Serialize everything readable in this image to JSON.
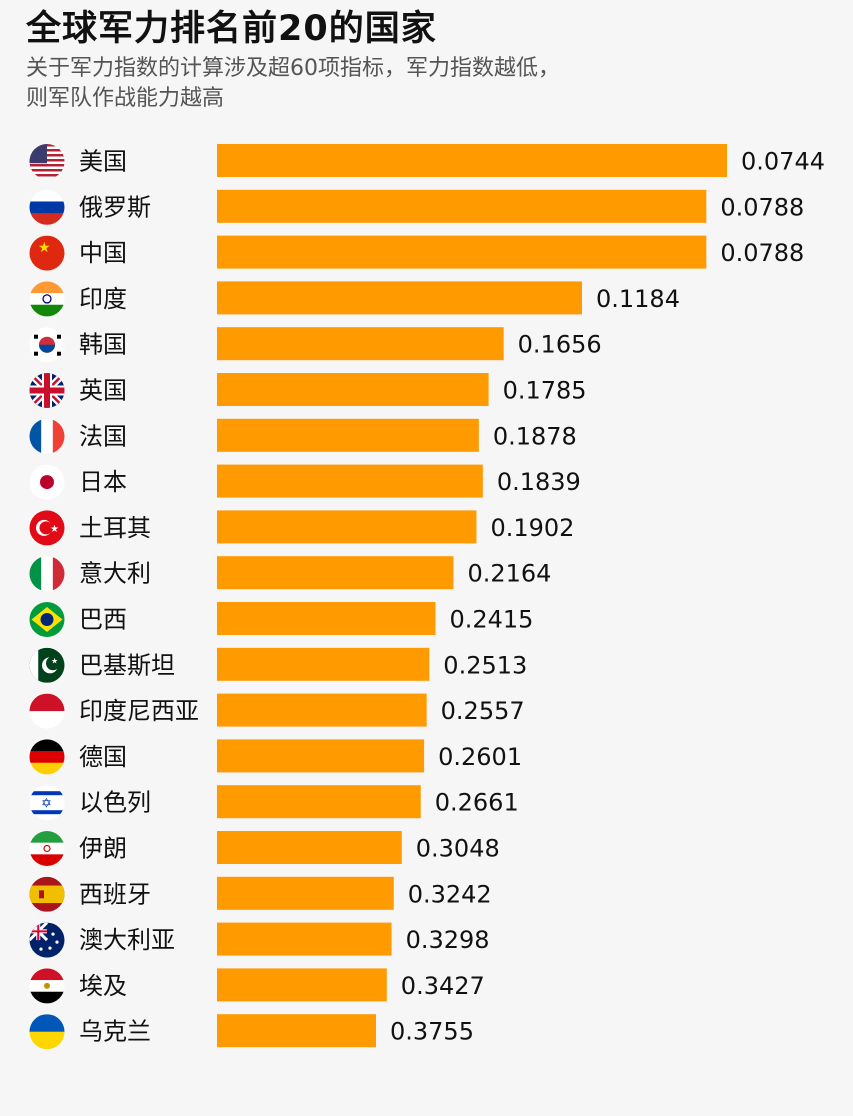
{
  "title": "全球军力排名前20的国家",
  "subtitle_line1": "关于军力指数的计算涉及超60项指标，军力指数越低，",
  "subtitle_line2": "则军队作战能力越高",
  "colors": {
    "bar": "#ff9a00"
  },
  "chart_data": {
    "type": "bar",
    "orientation": "horizontal",
    "title": "全球军力排名前20的国家",
    "categories": [
      "美国",
      "俄罗斯",
      "中国",
      "印度",
      "韩国",
      "英国",
      "法国",
      "日本",
      "土耳其",
      "意大利",
      "巴西",
      "巴基斯坦",
      "印度尼西亚",
      "德国",
      "以色列",
      "伊朗",
      "西班牙",
      "澳大利亚",
      "埃及",
      "乌克兰"
    ],
    "values": [
      0.0744,
      0.0788,
      0.0788,
      0.1184,
      0.1656,
      0.1785,
      0.1878,
      0.1839,
      0.1902,
      0.2164,
      0.2415,
      0.2513,
      0.2557,
      0.2601,
      0.2661,
      0.3048,
      0.3242,
      0.3298,
      0.3427,
      0.3755
    ],
    "value_labels": [
      "0.0744",
      "0.0788",
      "0.0788",
      "0.1184",
      "0.1656",
      "0.1785",
      "0.1878",
      "0.1839",
      "0.1902",
      "0.2164",
      "0.2415",
      "0.2513",
      "0.2557",
      "0.2601",
      "0.2661",
      "0.3048",
      "0.3242",
      "0.3298",
      "0.3427",
      "0.3755"
    ],
    "bar_length_scale": [
      0.0744,
      1.0
    ],
    "flags": [
      "usa-flag-icon",
      "russia-flag-icon",
      "china-flag-icon",
      "india-flag-icon",
      "korea-flag-icon",
      "uk-flag-icon",
      "france-flag-icon",
      "japan-flag-icon",
      "turkey-flag-icon",
      "italy-flag-icon",
      "brazil-flag-icon",
      "pakistan-flag-icon",
      "indonesia-flag-icon",
      "germany-flag-icon",
      "israel-flag-icon",
      "iran-flag-icon",
      "spain-flag-icon",
      "australia-flag-icon",
      "egypt-flag-icon",
      "ukraine-flag-icon"
    ],
    "xlabel": "",
    "ylabel": ""
  }
}
